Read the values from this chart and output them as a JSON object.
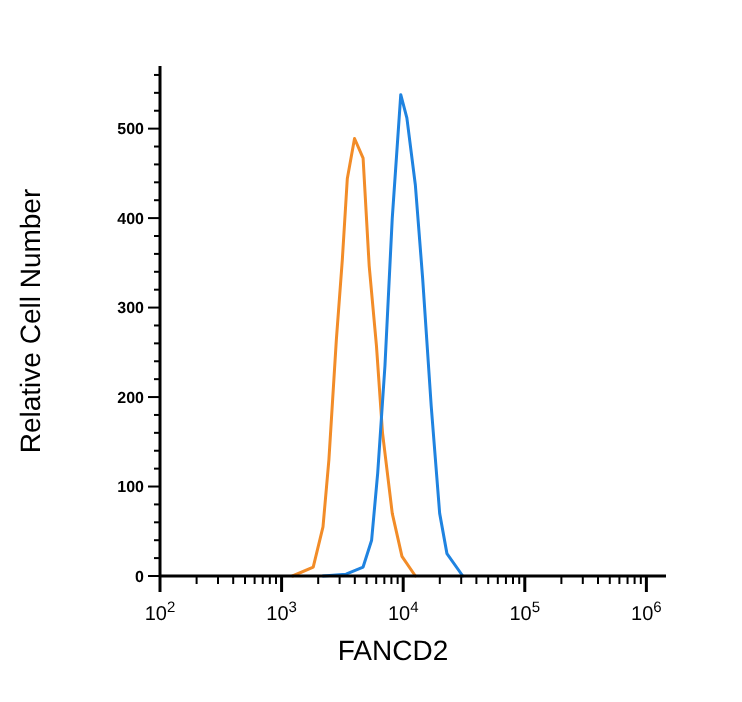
{
  "chart_data": {
    "type": "line",
    "xlabel": "FANCD2",
    "ylabel": "Relative Cell Number",
    "log": "x",
    "grid": false,
    "marker": "none",
    "line_style": "solid",
    "xlim": [
      100,
      1450000
    ],
    "ylim": [
      0,
      570
    ],
    "xticks": [
      {
        "value": 100,
        "label": "10$^{2}$"
      },
      {
        "value": 200,
        "label": null
      },
      {
        "value": 300,
        "label": null
      },
      {
        "value": 400,
        "label": null
      },
      {
        "value": 500,
        "label": null
      },
      {
        "value": 600,
        "label": null
      },
      {
        "value": 700,
        "label": null
      },
      {
        "value": 800,
        "label": null
      },
      {
        "value": 900,
        "label": null
      },
      {
        "value": 1000,
        "label": "10$^{3}$"
      },
      {
        "value": 2000,
        "label": null
      },
      {
        "value": 3000,
        "label": null
      },
      {
        "value": 4000,
        "label": null
      },
      {
        "value": 5000,
        "label": null
      },
      {
        "value": 6000,
        "label": null
      },
      {
        "value": 7000,
        "label": null
      },
      {
        "value": 8000,
        "label": null
      },
      {
        "value": 9000,
        "label": null
      },
      {
        "value": 10000,
        "label": "10$^{4}$"
      },
      {
        "value": 20000,
        "label": null
      },
      {
        "value": 30000,
        "label": null
      },
      {
        "value": 40000,
        "label": null
      },
      {
        "value": 50000,
        "label": null
      },
      {
        "value": 60000,
        "label": null
      },
      {
        "value": 70000,
        "label": null
      },
      {
        "value": 80000,
        "label": null
      },
      {
        "value": 90000,
        "label": null
      },
      {
        "value": 100000,
        "label": "10$^{5}$"
      },
      {
        "value": 200000,
        "label": null
      },
      {
        "value": 300000,
        "label": null
      },
      {
        "value": 400000,
        "label": null
      },
      {
        "value": 500000,
        "label": null
      },
      {
        "value": 600000,
        "label": null
      },
      {
        "value": 700000,
        "label": null
      },
      {
        "value": 800000,
        "label": null
      },
      {
        "value": 900000,
        "label": null
      },
      {
        "value": 1000000,
        "label": "10$^{6}$"
      }
    ],
    "yticks": [
      0,
      {
        "value": 20,
        "label": null
      },
      {
        "value": 40,
        "label": null
      },
      {
        "value": 60,
        "label": null
      },
      {
        "value": 80,
        "label": null
      },
      100,
      {
        "value": 120,
        "label": null
      },
      {
        "value": 140,
        "label": null
      },
      {
        "value": 160,
        "label": null
      },
      {
        "value": 180,
        "label": null
      },
      200,
      {
        "value": 220,
        "label": null
      },
      {
        "value": 240,
        "label": null
      },
      {
        "value": 260,
        "label": null
      },
      {
        "value": 280,
        "label": null
      },
      300,
      {
        "value": 320,
        "label": null
      },
      {
        "value": 340,
        "label": null
      },
      {
        "value": 360,
        "label": null
      },
      {
        "value": 380,
        "label": null
      },
      400,
      {
        "value": 420,
        "label": null
      },
      {
        "value": 440,
        "label": null
      },
      {
        "value": 460,
        "label": null
      },
      {
        "value": 480,
        "label": null
      },
      500,
      {
        "value": 520,
        "label": null
      },
      {
        "value": 540,
        "label": null
      },
      {
        "value": 560,
        "label": null
      }
    ],
    "series": [
      {
        "color": "#f28c28",
        "x": [
          1230,
          1820,
          2190,
          2450,
          2820,
          3160,
          3470,
          3980,
          4680,
          5250,
          6030,
          6760,
          8130,
          9770,
          12590
        ],
        "values": [
          0,
          10,
          55,
          130,
          264,
          354,
          444,
          489,
          467,
          347,
          257,
          160,
          70,
          22,
          0
        ]
      },
      {
        "color": "#1f83e0",
        "x": [
          2190,
          3390,
          4680,
          5500,
          6170,
          7080,
          8130,
          9550,
          10720,
          12590,
          14450,
          17000,
          19950,
          22900,
          30900
        ],
        "values": [
          0,
          2,
          10,
          40,
          115,
          235,
          400,
          538,
          512,
          437,
          333,
          190,
          70,
          25,
          0
        ]
      }
    ]
  }
}
